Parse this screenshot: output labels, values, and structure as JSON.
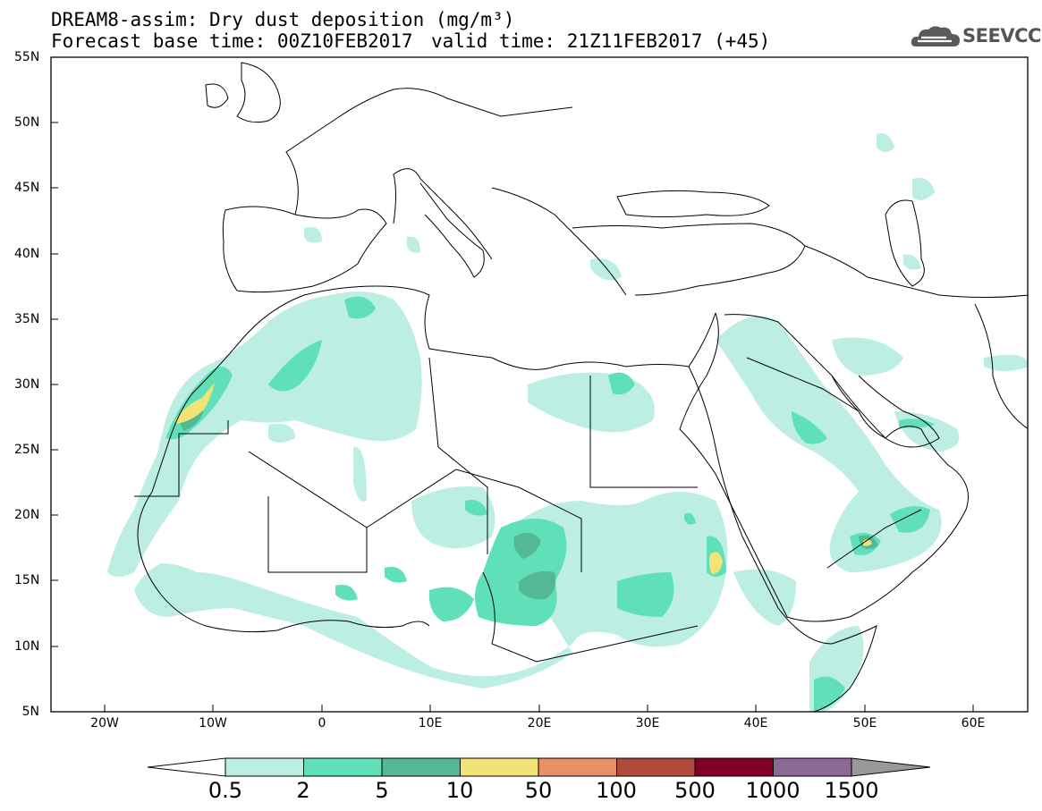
{
  "title": {
    "line1": "DREAM8-assim: Dry dust deposition (mg/m³)",
    "line2_base": "Forecast base time: 00Z10FEB2017",
    "line2_valid": "valid time: 21Z11FEB2017 (+45)"
  },
  "logo": {
    "text": "SEEVCCC",
    "icon": "cloud-icon"
  },
  "axes": {
    "lat_labels": [
      "55N",
      "50N",
      "45N",
      "40N",
      "35N",
      "30N",
      "25N",
      "20N",
      "15N",
      "10N",
      "5N"
    ],
    "lon_labels": [
      "20W",
      "10W",
      "0",
      "10E",
      "20E",
      "30E",
      "40E",
      "50E",
      "60E"
    ]
  },
  "colorbar": {
    "labels": [
      "0.5",
      "2",
      "5",
      "10",
      "50",
      "100",
      "500",
      "1000",
      "1500"
    ],
    "colors": [
      "#ffffff",
      "#bdeee4",
      "#5fe0b8",
      "#55b894",
      "#f2e377",
      "#e88f66",
      "#b04b3b",
      "#820028",
      "#8d6996",
      "#999999"
    ]
  },
  "map_layers": {
    "level_colors": {
      "0.5": "#bdeee4",
      "2": "#5fe0b8",
      "5": "#55b894",
      "10": "#f2e377"
    }
  }
}
